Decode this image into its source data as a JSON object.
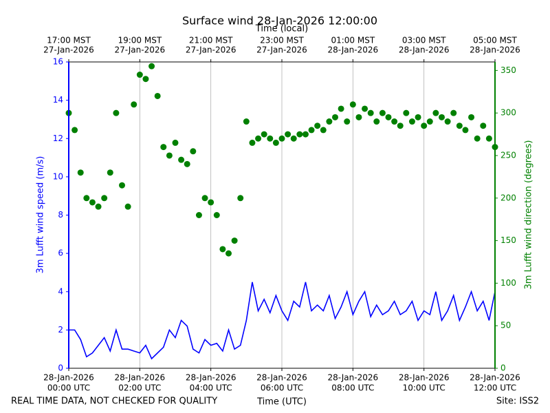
{
  "chart_data": {
    "type": "line",
    "title": "Surface wind 28-Jan-2026 12:00:00",
    "xlabel": "Time (UTC)",
    "x2label": "Time (local)",
    "ylabel": "3m Lufft wind speed (m/s)",
    "y2label": "3m Lufft wind direction (degrees)",
    "footer_left": "REAL TIME DATA, NOT CHECKED FOR QUALITY",
    "footer_right": "Site: ISS2",
    "grid": "x",
    "xlim": [
      "2026-01-28T00:00",
      "2026-01-28T12:00"
    ],
    "xticks": [
      {
        "value": "2026-01-28T00:00",
        "label": [
          "28-Jan-2026",
          "00:00 UTC"
        ]
      },
      {
        "value": "2026-01-28T02:00",
        "label": [
          "28-Jan-2026",
          "02:00 UTC"
        ]
      },
      {
        "value": "2026-01-28T04:00",
        "label": [
          "28-Jan-2026",
          "04:00 UTC"
        ]
      },
      {
        "value": "2026-01-28T06:00",
        "label": [
          "28-Jan-2026",
          "06:00 UTC"
        ]
      },
      {
        "value": "2026-01-28T08:00",
        "label": [
          "28-Jan-2026",
          "08:00 UTC"
        ]
      },
      {
        "value": "2026-01-28T10:00",
        "label": [
          "28-Jan-2026",
          "10:00 UTC"
        ]
      },
      {
        "value": "2026-01-28T12:00",
        "label": [
          "28-Jan-2026",
          "12:00 UTC"
        ]
      }
    ],
    "x2ticks": [
      {
        "value": "2026-01-28T00:00",
        "label": [
          "17:00 MST",
          "27-Jan-2026"
        ]
      },
      {
        "value": "2026-01-28T02:00",
        "label": [
          "19:00 MST",
          "27-Jan-2026"
        ]
      },
      {
        "value": "2026-01-28T04:00",
        "label": [
          "21:00 MST",
          "27-Jan-2026"
        ]
      },
      {
        "value": "2026-01-28T06:00",
        "label": [
          "23:00 MST",
          "27-Jan-2026"
        ]
      },
      {
        "value": "2026-01-28T08:00",
        "label": [
          "01:00 MST",
          "28-Jan-2026"
        ]
      },
      {
        "value": "2026-01-28T10:00",
        "label": [
          "03:00 MST",
          "28-Jan-2026"
        ]
      },
      {
        "value": "2026-01-28T12:00",
        "label": [
          "05:00 MST",
          "28-Jan-2026"
        ]
      }
    ],
    "ylim": [
      0,
      16
    ],
    "yticks": [
      0,
      2,
      4,
      6,
      8,
      10,
      12,
      14,
      16
    ],
    "y2lim": [
      0,
      360
    ],
    "y2ticks": [
      0,
      50,
      100,
      150,
      200,
      250,
      300,
      350
    ],
    "x": [
      "2026-01-28T00:00",
      "2026-01-28T00:10",
      "2026-01-28T00:20",
      "2026-01-28T00:30",
      "2026-01-28T00:40",
      "2026-01-28T00:50",
      "2026-01-28T01:00",
      "2026-01-28T01:10",
      "2026-01-28T01:20",
      "2026-01-28T01:30",
      "2026-01-28T01:40",
      "2026-01-28T01:50",
      "2026-01-28T02:00",
      "2026-01-28T02:10",
      "2026-01-28T02:20",
      "2026-01-28T02:30",
      "2026-01-28T02:40",
      "2026-01-28T02:50",
      "2026-01-28T03:00",
      "2026-01-28T03:10",
      "2026-01-28T03:20",
      "2026-01-28T03:30",
      "2026-01-28T03:40",
      "2026-01-28T03:50",
      "2026-01-28T04:00",
      "2026-01-28T04:10",
      "2026-01-28T04:20",
      "2026-01-28T04:30",
      "2026-01-28T04:40",
      "2026-01-28T04:50",
      "2026-01-28T05:00",
      "2026-01-28T05:10",
      "2026-01-28T05:20",
      "2026-01-28T05:30",
      "2026-01-28T05:40",
      "2026-01-28T05:50",
      "2026-01-28T06:00",
      "2026-01-28T06:10",
      "2026-01-28T06:20",
      "2026-01-28T06:30",
      "2026-01-28T06:40",
      "2026-01-28T06:50",
      "2026-01-28T07:00",
      "2026-01-28T07:10",
      "2026-01-28T07:20",
      "2026-01-28T07:30",
      "2026-01-28T07:40",
      "2026-01-28T07:50",
      "2026-01-28T08:00",
      "2026-01-28T08:10",
      "2026-01-28T08:20",
      "2026-01-28T08:30",
      "2026-01-28T08:40",
      "2026-01-28T08:50",
      "2026-01-28T09:00",
      "2026-01-28T09:10",
      "2026-01-28T09:20",
      "2026-01-28T09:30",
      "2026-01-28T09:40",
      "2026-01-28T09:50",
      "2026-01-28T10:00",
      "2026-01-28T10:10",
      "2026-01-28T10:20",
      "2026-01-28T10:30",
      "2026-01-28T10:40",
      "2026-01-28T10:50",
      "2026-01-28T11:00",
      "2026-01-28T11:10",
      "2026-01-28T11:20",
      "2026-01-28T11:30",
      "2026-01-28T11:40",
      "2026-01-28T11:50",
      "2026-01-28T12:00"
    ],
    "series": [
      {
        "type": "line",
        "axis": "y",
        "color": "#0000ff",
        "values": [
          2.0,
          2.0,
          1.5,
          0.6,
          0.8,
          1.2,
          1.6,
          0.9,
          2.0,
          1.0,
          1.0,
          0.9,
          0.8,
          1.2,
          0.5,
          0.8,
          1.1,
          2.0,
          1.6,
          2.5,
          2.2,
          1.0,
          0.8,
          1.5,
          1.2,
          1.3,
          0.9,
          2.0,
          1.0,
          1.2,
          2.5,
          4.5,
          3.0,
          3.6,
          2.9,
          3.8,
          3.0,
          2.5,
          3.5,
          3.2,
          4.5,
          3.0,
          3.3,
          3.0,
          3.8,
          2.6,
          3.2,
          4.0,
          2.8,
          3.5,
          4.0,
          2.7,
          3.3,
          2.8,
          3.0,
          3.5,
          2.8,
          3.0,
          3.5,
          2.5,
          3.0,
          2.8,
          4.0,
          2.5,
          3.0,
          3.8,
          2.5,
          3.2,
          4.0,
          3.0,
          3.5,
          2.5,
          4.0
        ]
      },
      {
        "type": "scatter",
        "axis": "y2",
        "color": "#008000",
        "values": [
          300,
          280,
          230,
          200,
          195,
          190,
          200,
          230,
          300,
          215,
          190,
          310,
          345,
          340,
          355,
          320,
          260,
          250,
          265,
          245,
          240,
          255,
          180,
          200,
          195,
          180,
          140,
          135,
          150,
          200,
          290,
          265,
          270,
          275,
          270,
          265,
          270,
          275,
          270,
          275,
          275,
          280,
          285,
          280,
          290,
          295,
          305,
          290,
          310,
          295,
          305,
          300,
          290,
          300,
          295,
          290,
          285,
          300,
          290,
          295,
          285,
          290,
          300,
          295,
          290,
          300,
          285,
          280,
          295,
          270,
          285,
          270,
          260
        ]
      }
    ]
  }
}
